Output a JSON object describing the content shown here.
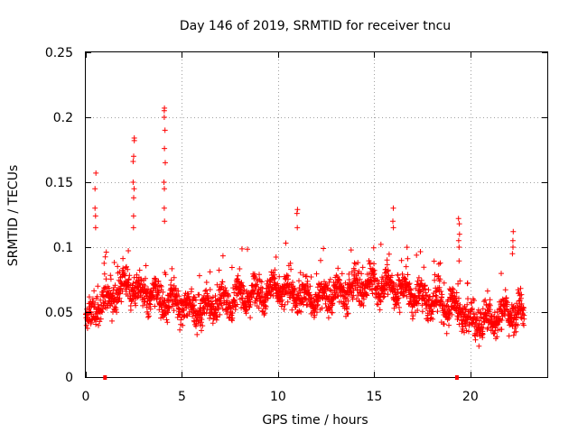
{
  "chart_data": {
    "type": "scatter",
    "title": "Day 146 of 2019, SRMTID for receiver tncu",
    "xlabel": "GPS time / hours",
    "ylabel": "SRMTID / TECUs",
    "xlim": [
      0,
      24
    ],
    "ylim": [
      0,
      0.25
    ],
    "x_ticks": [
      0,
      5,
      10,
      15,
      20
    ],
    "x_tick_labels": [
      "0",
      "5",
      "10",
      "15",
      "20"
    ],
    "y_ticks": [
      0,
      0.05,
      0.1,
      0.15,
      0.2,
      0.25
    ],
    "y_tick_labels": [
      "0",
      "0.05",
      "0.1",
      "0.15",
      "0.2",
      "0.25"
    ],
    "grid": true,
    "series_color": "#ff0000",
    "axis_markers_x": [
      1.0,
      19.3
    ],
    "trend": [
      [
        0.0,
        0.045
      ],
      [
        1.0,
        0.06
      ],
      [
        2.0,
        0.07
      ],
      [
        3.0,
        0.065
      ],
      [
        4.0,
        0.06
      ],
      [
        5.0,
        0.055
      ],
      [
        6.0,
        0.052
      ],
      [
        7.0,
        0.058
      ],
      [
        8.0,
        0.062
      ],
      [
        9.0,
        0.065
      ],
      [
        10.0,
        0.068
      ],
      [
        11.0,
        0.062
      ],
      [
        12.0,
        0.06
      ],
      [
        13.0,
        0.065
      ],
      [
        14.0,
        0.068
      ],
      [
        15.0,
        0.072
      ],
      [
        16.0,
        0.07
      ],
      [
        17.0,
        0.063
      ],
      [
        18.0,
        0.058
      ],
      [
        19.0,
        0.055
      ],
      [
        19.5,
        0.052
      ],
      [
        20.0,
        0.042
      ],
      [
        21.0,
        0.045
      ],
      [
        22.0,
        0.05
      ],
      [
        22.8,
        0.05
      ]
    ],
    "spikes": [
      {
        "x": 0.5,
        "y": [
          0.157,
          0.145,
          0.13,
          0.124,
          0.115
        ]
      },
      {
        "x": 2.5,
        "y": [
          0.184,
          0.182,
          0.17,
          0.166,
          0.15,
          0.145,
          0.138,
          0.124,
          0.115
        ]
      },
      {
        "x": 4.1,
        "y": [
          0.207,
          0.205,
          0.2,
          0.19,
          0.176,
          0.165,
          0.15,
          0.145,
          0.13,
          0.12
        ]
      },
      {
        "x": 11.0,
        "y": [
          0.129,
          0.126,
          0.115
        ]
      },
      {
        "x": 16.0,
        "y": [
          0.13,
          0.12,
          0.115
        ]
      },
      {
        "x": 19.4,
        "y": [
          0.122,
          0.118,
          0.11,
          0.105,
          0.1
        ]
      },
      {
        "x": 22.2,
        "y": [
          0.112,
          0.105,
          0.1,
          0.095
        ]
      }
    ]
  }
}
